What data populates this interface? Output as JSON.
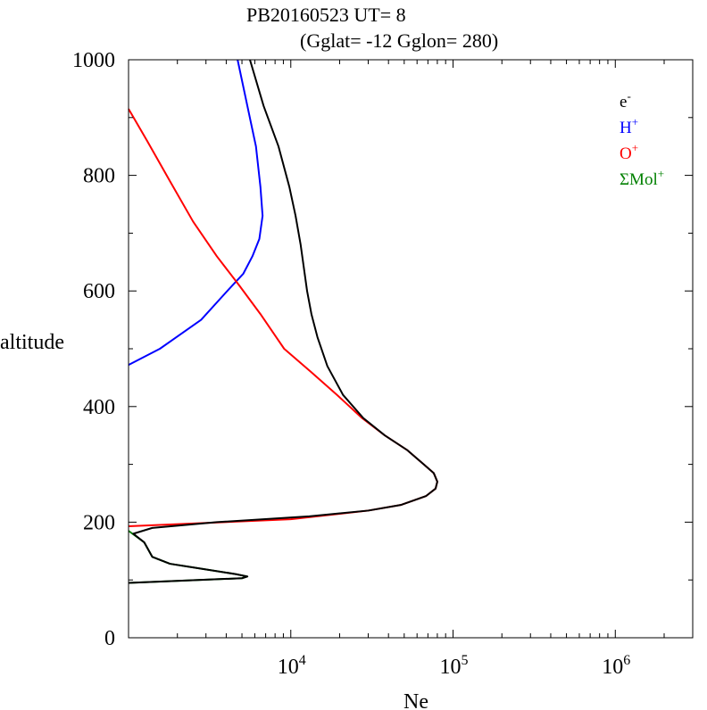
{
  "chart_data": {
    "type": "line",
    "title_line1": "PB20160523   UT=  8",
    "title_line2": "(Gglat= -12   Gglon=  280)",
    "xlabel": "Ne",
    "ylabel": "altitude",
    "x_scale": "log",
    "xlim": [
      1000,
      3000000
    ],
    "ylim": [
      0,
      1000
    ],
    "x_tick_labels": [
      {
        "value": 10000,
        "base": "10",
        "exp": "4"
      },
      {
        "value": 100000,
        "base": "10",
        "exp": "5"
      },
      {
        "value": 1000000,
        "base": "10",
        "exp": "6"
      }
    ],
    "y_ticks": [
      0,
      200,
      400,
      600,
      800,
      1000
    ],
    "legend_position": "top-right",
    "series": [
      {
        "key": "e",
        "legend_base": "e",
        "legend_sup": "-",
        "color": "#000000",
        "points": [
          [
            1000,
            95
          ],
          [
            5000,
            103
          ],
          [
            5400,
            106
          ],
          [
            4600,
            110
          ],
          [
            1800,
            128
          ],
          [
            1400,
            140
          ],
          [
            1250,
            165
          ],
          [
            1070,
            180
          ],
          [
            1400,
            190
          ],
          [
            3500,
            200
          ],
          [
            13000,
            210
          ],
          [
            30000,
            220
          ],
          [
            48000,
            230
          ],
          [
            68000,
            245
          ],
          [
            78000,
            258
          ],
          [
            80000,
            270
          ],
          [
            76000,
            285
          ],
          [
            66000,
            300
          ],
          [
            52000,
            325
          ],
          [
            38000,
            350
          ],
          [
            28000,
            380
          ],
          [
            21000,
            420
          ],
          [
            16800,
            470
          ],
          [
            14600,
            520
          ],
          [
            13400,
            560
          ],
          [
            12600,
            600
          ],
          [
            11500,
            680
          ],
          [
            10700,
            730
          ],
          [
            9800,
            780
          ],
          [
            8400,
            850
          ],
          [
            6800,
            920
          ],
          [
            5600,
            1000
          ]
        ]
      },
      {
        "key": "h",
        "legend_base": "H",
        "legend_sup": "+",
        "color": "#0000ff",
        "points": [
          [
            1000,
            472
          ],
          [
            1560,
            500
          ],
          [
            2800,
            550
          ],
          [
            4000,
            598
          ],
          [
            5100,
            630
          ],
          [
            5800,
            660
          ],
          [
            6400,
            690
          ],
          [
            6700,
            730
          ],
          [
            6500,
            780
          ],
          [
            6100,
            850
          ],
          [
            5400,
            920
          ],
          [
            4700,
            1000
          ]
        ]
      },
      {
        "key": "o",
        "legend_base": "O",
        "legend_sup": "+",
        "color": "#ff0000",
        "points": [
          [
            1000,
            193
          ],
          [
            10000,
            205
          ],
          [
            30000,
            220
          ],
          [
            48000,
            230
          ],
          [
            68000,
            245
          ],
          [
            78000,
            258
          ],
          [
            80000,
            270
          ],
          [
            76000,
            285
          ],
          [
            66000,
            300
          ],
          [
            52000,
            325
          ],
          [
            38000,
            350
          ],
          [
            27500,
            380
          ],
          [
            19300,
            420
          ],
          [
            13300,
            460
          ],
          [
            9100,
            500
          ],
          [
            6500,
            560
          ],
          [
            4800,
            610
          ],
          [
            3500,
            660
          ],
          [
            2500,
            720
          ],
          [
            1800,
            790
          ],
          [
            1300,
            860
          ],
          [
            1000,
            915
          ]
        ]
      },
      {
        "key": "mol",
        "legend_base": "ΣMol",
        "legend_sup": "+",
        "color": "#008000",
        "points": [
          [
            1000,
            95
          ],
          [
            5000,
            103
          ],
          [
            5400,
            106
          ],
          [
            4600,
            110
          ],
          [
            1800,
            128
          ],
          [
            1400,
            140
          ],
          [
            1250,
            165
          ],
          [
            1000,
            185
          ]
        ]
      }
    ]
  }
}
